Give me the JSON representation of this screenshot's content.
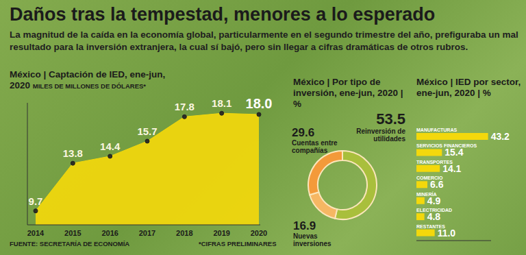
{
  "title": "Daños tras la tempestad, menores a lo esperado",
  "subtitle": "La magnitud de la caída en la economía global, particularmente en el segundo trimestre del año, prefiguraba un mal resultado para la inversión extranjera, la cual sí bajó, pero sin llegar a cifras dramáticas de otros rubros.",
  "source": "FUENTE: SECRETARÍA DE ECONOMÍA",
  "note": "*CIFRAS PRELIMINARES",
  "chart_data": [
    {
      "type": "area",
      "title": "México | Captación de IED, ene-jun, 2020",
      "subtitle": "MILES DE MILLONES DE DÓLARES*",
      "categories": [
        "2014",
        "2015",
        "2016",
        "2017",
        "2018",
        "2019",
        "2020"
      ],
      "values": [
        9.7,
        13.8,
        14.4,
        15.7,
        17.8,
        18.1,
        18.0
      ],
      "value_labels": [
        "9.7",
        "13.8",
        "14.4",
        "15.7",
        "17.8",
        "18.1",
        "18.0"
      ],
      "data_labels": true,
      "color": "#f3d80c",
      "marker": "circle",
      "ylim": [
        8.5,
        19
      ],
      "tick_labels": "x"
    },
    {
      "type": "pie",
      "title": "México | Por tipo de inversión, ene-jun, 2020 | %",
      "categories": [
        "Reinversión de utilidades",
        "Nuevas inversiones",
        "Cuentas entre compañías"
      ],
      "values": [
        53.5,
        16.9,
        29.6
      ],
      "colors": [
        "#a9bf3c",
        "#f6b763",
        "#f39a3a"
      ],
      "data_labels": true
    },
    {
      "type": "bar",
      "orientation": "horizontal",
      "title": "México | IED por sector, ene-jun, 2020 | %",
      "categories": [
        "MANUFACTURAS",
        "SERVICIOS FINANCIEROS",
        "TRANSPORTES",
        "COMERCIO",
        "MINERÍA",
        "ELECTRICIDAD",
        "RESTANTES"
      ],
      "values": [
        43.2,
        15.4,
        14.1,
        6.6,
        4.9,
        4.8,
        11.0
      ],
      "value_labels": [
        "43.2",
        "15.4",
        "14.1",
        "6.6",
        "4.9",
        "4.8",
        "11.0"
      ],
      "data_labels": true,
      "color": "#f3d80c",
      "xlim": [
        0,
        45
      ],
      "tick_labels": false
    }
  ]
}
